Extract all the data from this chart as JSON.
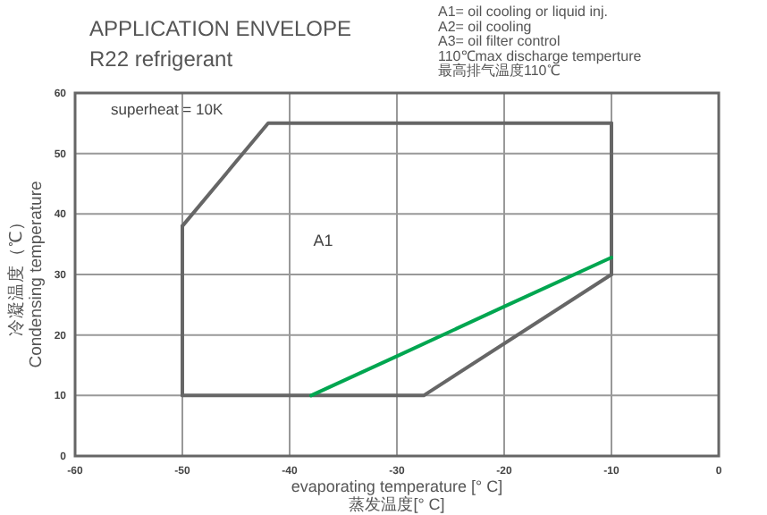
{
  "chart_data": {
    "type": "line",
    "title": "APPLICATION ENVELOPE",
    "subtitle": "R22 refrigerant",
    "xlabel": "evaporating temperature [° C]\n蒸发温度[° C]",
    "ylabel": "冷凝温度（℃）\nCondensing temperature",
    "series": [
      {
        "x": [
          -50,
          -42,
          -10
        ],
        "values": [
          38,
          55,
          55
        ],
        "color": "#666666"
      },
      {
        "x": [
          -50,
          -27.5,
          -10
        ],
        "values": [
          10,
          10,
          30
        ],
        "color": "#666666"
      },
      {
        "x": [
          -50,
          -50
        ],
        "values": [
          10,
          38
        ],
        "color": "#666666"
      },
      {
        "x": [
          -10,
          -10
        ],
        "values": [
          30,
          55
        ],
        "color": "#666666"
      },
      {
        "x": [
          -38,
          -30,
          -20,
          -10
        ],
        "values": [
          10,
          16.5,
          24.7,
          32.8
        ],
        "color": "#00a650"
      }
    ],
    "xlim": [
      -60,
      0
    ],
    "ylim": [
      0,
      60
    ],
    "xticks": [
      -60,
      -50,
      -40,
      -30,
      -20,
      -10,
      0
    ],
    "yticks": [
      0,
      10,
      20,
      30,
      40,
      50,
      60
    ],
    "grid": true,
    "marker": "none",
    "line_style": "solid",
    "annotations": [
      "A1= oil cooling or liquid inj.",
      "A2= oil cooling",
      "A3= oil filter control",
      "110℃max discharge temperture",
      "最高排气温度110℃",
      "superheat = 10K",
      "A1"
    ]
  }
}
